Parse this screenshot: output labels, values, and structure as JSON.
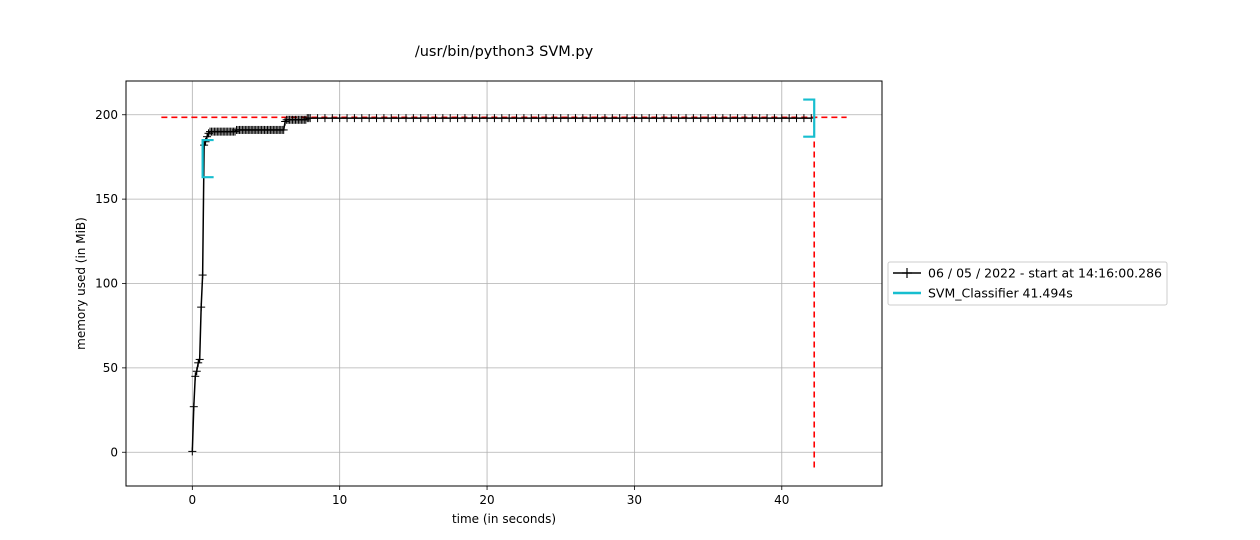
{
  "chart_data": {
    "type": "line",
    "title": "/usr/bin/python3 SVM.py",
    "xlabel": "time (in seconds)",
    "ylabel": "memory used (in MiB)",
    "xlim": [
      -4.5,
      46.8
    ],
    "ylim": [
      -20,
      220
    ],
    "xticks": [
      0,
      10,
      20,
      30,
      40
    ],
    "yticks": [
      0,
      50,
      100,
      150,
      200
    ],
    "grid": true,
    "legend_position": "right",
    "legend": [
      "06 / 05 / 2022 - start at 14:16:00.286",
      "SVM_Classifier 41.494s"
    ],
    "series": [
      {
        "name": "06 / 05 / 2022 - start at 14:16:00.286",
        "color": "#000000",
        "marker": "+",
        "x": [
          0.0,
          0.1,
          0.2,
          0.3,
          0.4,
          0.5,
          0.6,
          0.7,
          0.8,
          0.9,
          1.0,
          1.1,
          1.2,
          1.3,
          1.4,
          1.5,
          1.6,
          1.7,
          1.8,
          1.9,
          2.0,
          2.1,
          2.2,
          2.3,
          2.4,
          2.5,
          2.6,
          2.7,
          2.8,
          2.9,
          3.0,
          3.1,
          3.2,
          3.3,
          3.4,
          3.5,
          3.6,
          3.7,
          3.8,
          3.9,
          4.0,
          4.1,
          4.2,
          4.3,
          4.4,
          4.5,
          4.6,
          4.7,
          4.8,
          4.9,
          5.0,
          5.1,
          5.2,
          5.3,
          5.4,
          5.5,
          5.6,
          5.7,
          5.8,
          5.9,
          6.0,
          6.1,
          6.2,
          6.3,
          6.4,
          6.5,
          6.6,
          6.7,
          6.8,
          6.9,
          7.0,
          7.1,
          7.2,
          7.3,
          7.4,
          7.5,
          7.6,
          7.7,
          7.8,
          7.9,
          8.0,
          8.5,
          9.0,
          9.5,
          10.0,
          10.5,
          11.0,
          11.5,
          12.0,
          12.5,
          13.0,
          13.5,
          14.0,
          14.5,
          15.0,
          15.5,
          16.0,
          16.5,
          17.0,
          17.5,
          18.0,
          18.5,
          19.0,
          19.5,
          20.0,
          20.5,
          21.0,
          21.5,
          22.0,
          22.5,
          23.0,
          23.5,
          24.0,
          24.5,
          25.0,
          25.5,
          26.0,
          26.5,
          27.0,
          27.5,
          28.0,
          28.5,
          29.0,
          29.5,
          30.0,
          30.5,
          31.0,
          31.5,
          32.0,
          32.5,
          33.0,
          33.5,
          34.0,
          34.5,
          35.0,
          35.5,
          36.0,
          36.5,
          37.0,
          37.5,
          38.0,
          38.5,
          39.0,
          39.5,
          40.0,
          40.5,
          41.0,
          41.5,
          42.0
        ],
        "y": [
          0.5,
          27,
          45,
          48,
          53,
          55,
          86,
          105,
          182,
          184,
          187,
          189,
          190,
          190,
          190,
          190,
          190,
          190,
          190,
          190,
          190,
          190,
          190,
          190,
          190,
          190,
          190,
          190,
          190,
          190,
          191,
          191,
          191,
          191,
          191,
          191,
          191,
          191,
          191,
          191,
          191,
          191,
          191,
          191,
          191,
          191,
          191,
          191,
          191,
          191,
          191,
          191,
          191,
          191,
          191,
          191,
          191,
          191,
          191,
          191,
          191,
          191,
          191,
          196,
          197,
          197,
          197,
          197,
          197,
          197,
          197,
          197,
          197,
          197,
          197,
          197,
          197,
          197,
          198,
          198,
          198,
          198,
          198,
          198,
          198,
          198,
          198,
          198,
          198,
          198,
          198,
          198,
          198,
          198,
          198,
          198,
          198,
          198,
          198,
          198,
          198,
          198,
          198,
          198,
          198,
          198,
          198,
          198,
          198,
          198,
          198,
          198,
          198,
          198,
          198,
          198,
          198,
          198,
          198,
          198,
          198,
          198,
          198,
          198,
          198,
          198,
          198,
          198,
          198,
          198,
          198,
          198,
          198,
          198,
          198,
          198,
          198,
          198,
          198,
          198,
          198,
          198,
          198,
          198,
          198,
          198,
          198,
          198,
          198
        ]
      },
      {
        "name": "SVM_Classifier 41.494s",
        "color": "#17becf",
        "type": "bracket",
        "x_start": 0.7,
        "x_end": 42.2,
        "y_start_low": 163,
        "y_start_high": 185,
        "y_end_low": 187,
        "y_end_high": 209
      }
    ],
    "max_markers": {
      "color": "#ff0000",
      "y": 198.5,
      "x": 42.2,
      "h_x_range": [
        -2.1,
        44.4
      ],
      "v_y_range": [
        -9,
        198.5
      ]
    }
  }
}
